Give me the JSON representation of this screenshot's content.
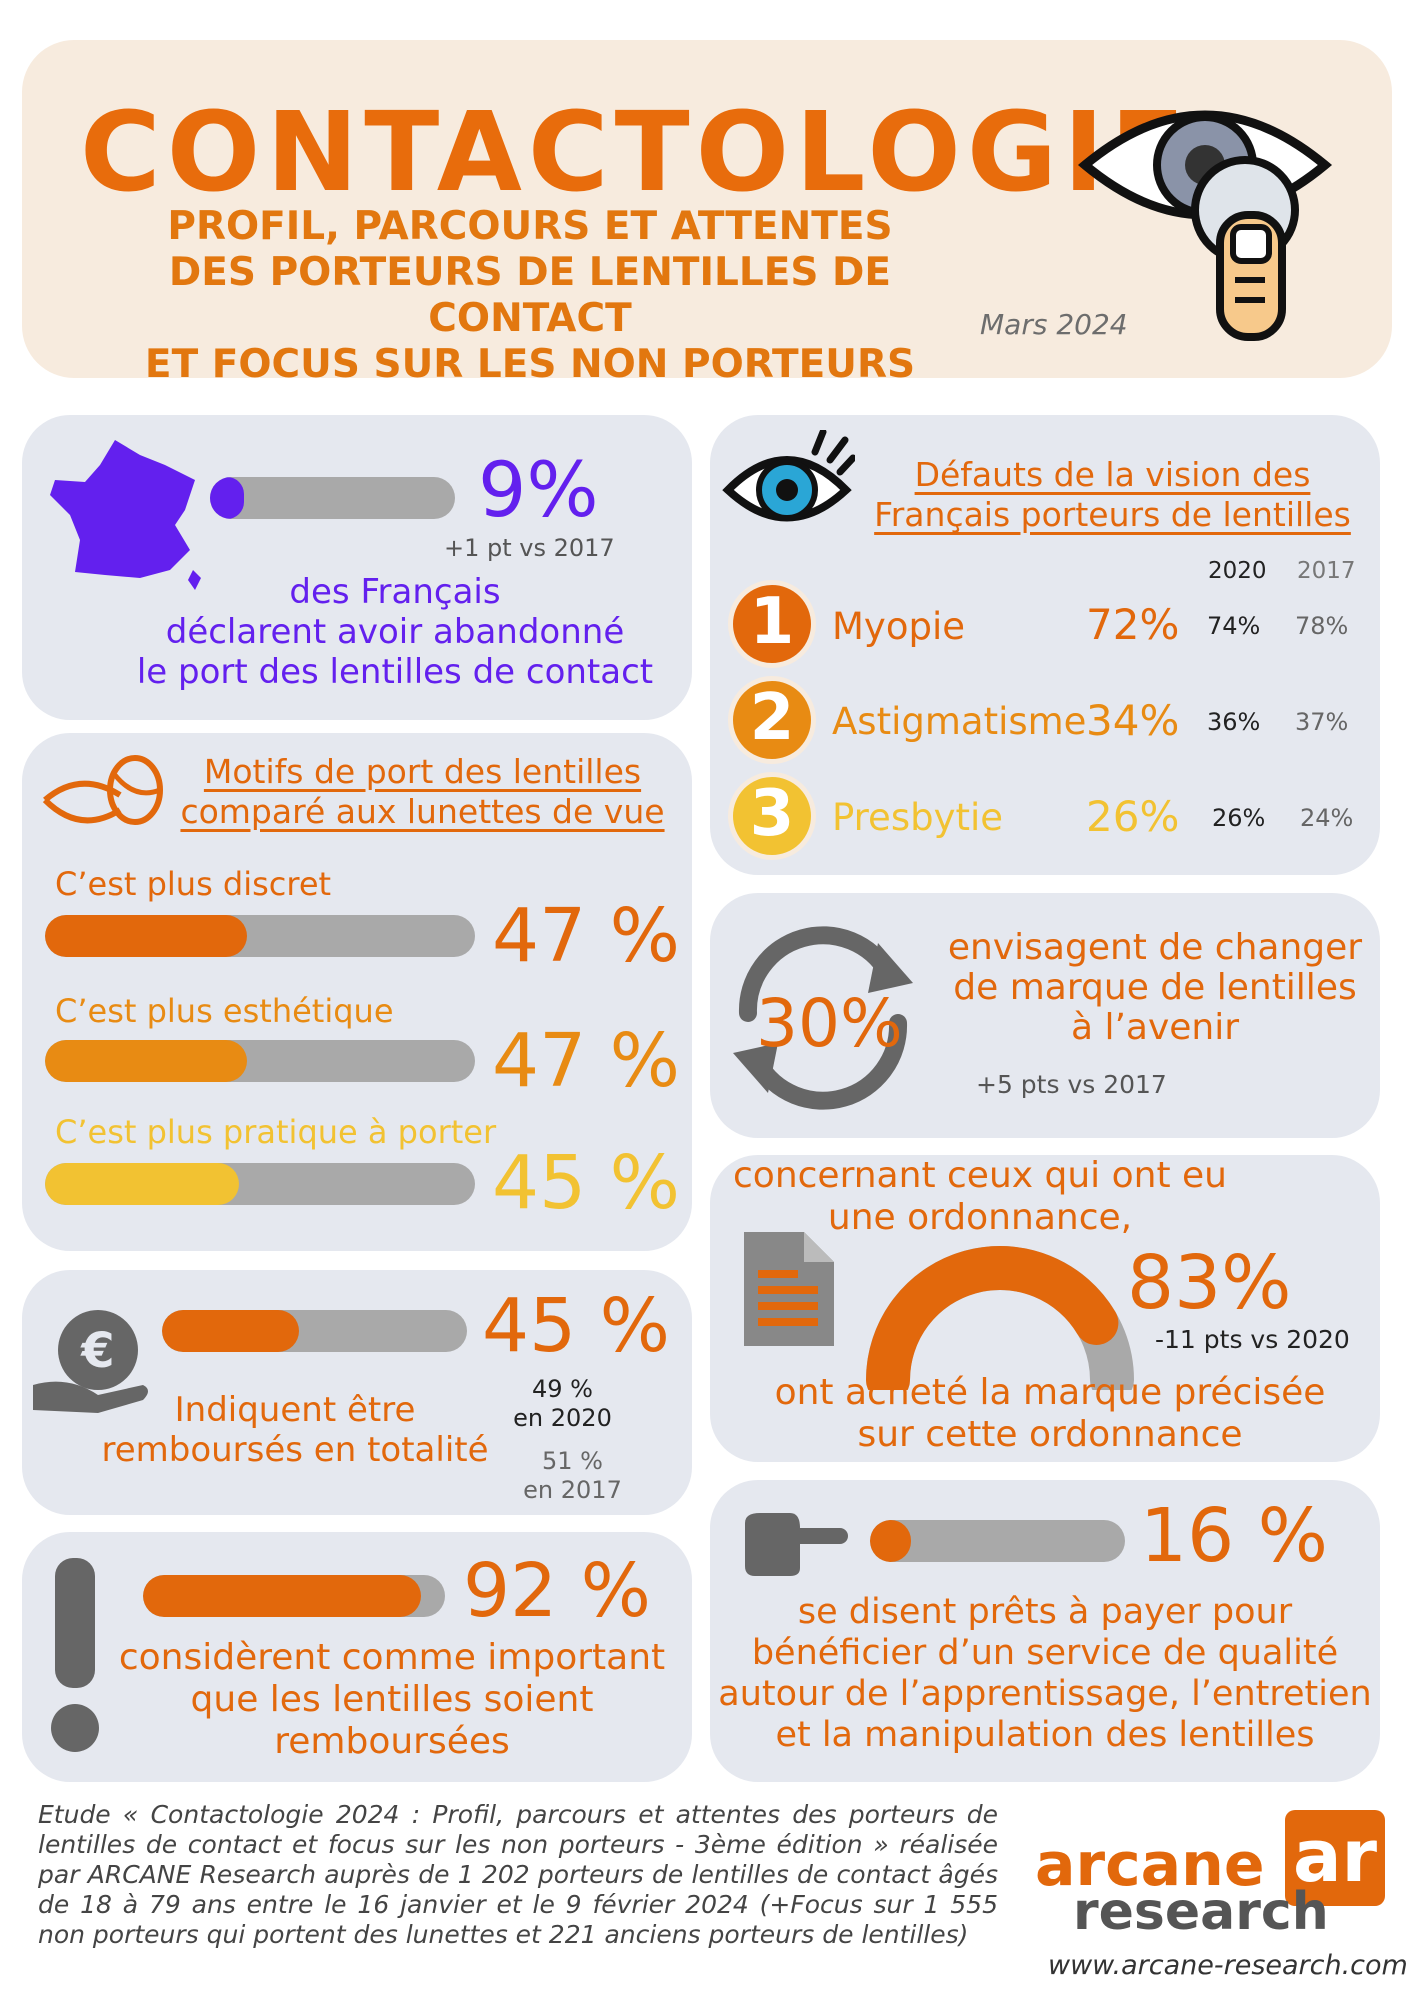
{
  "header": {
    "title": "CONTACTOLOGIE",
    "subtitle": [
      "PROFIL, PARCOURS ET ATTENTES",
      "DES PORTEURS DE LENTILLES DE CONTACT",
      "ET FOCUS SUR LES NON PORTEURS"
    ],
    "date": "Mars 2024"
  },
  "colors": {
    "orange": "#e2680c",
    "mid_orange": "#e88b13",
    "yellow": "#f2c232",
    "purple": "#6320ee",
    "grey_bar": "#a9a9a9",
    "card_bg": "#e5e8ef"
  },
  "abandon": {
    "value": "9%",
    "value_fraction": 0.09,
    "delta": "+1 pt vs 2017",
    "text": [
      "des Français",
      "déclarent avoir abandonné",
      "le port des lentilles de contact"
    ],
    "icon": "france-map-icon"
  },
  "vision": {
    "title": [
      "Défauts de la vision des",
      "Français porteurs de lentilles"
    ],
    "col_2020": "2020",
    "col_2017": "2017",
    "rows": [
      {
        "rank": "1",
        "label": "Myopie",
        "value": "72%",
        "v2020": "74%",
        "v2017": "78%"
      },
      {
        "rank": "2",
        "label": "Astigmatisme",
        "value": "34%",
        "v2020": "36%",
        "v2017": "37%"
      },
      {
        "rank": "3",
        "label": "Presbytie",
        "value": "26%",
        "v2020": "26%",
        "v2017": "24%"
      }
    ],
    "icon": "eye-icon"
  },
  "motifs": {
    "title": [
      "Motifs de port des lentilles",
      "comparé aux lunettes de vue"
    ],
    "items": [
      {
        "label": "C’est plus discret",
        "value": "47 %",
        "fraction": 0.47
      },
      {
        "label": "C’est plus esthétique",
        "value": "47 %",
        "fraction": 0.47
      },
      {
        "label": "C’est plus pratique à porter",
        "value": "45 %",
        "fraction": 0.45
      }
    ],
    "icon": "contact-lens-icon"
  },
  "changer": {
    "value": "30%",
    "text": [
      "envisagent de changer",
      "de marque de lentilles",
      "à l’avenir"
    ],
    "delta": "+5 pts vs 2017",
    "icon": "refresh-arrows-icon"
  },
  "ordonnance": {
    "intro": [
      "concernant ceux qui ont eu",
      "une ordonnance,"
    ],
    "value": "83%",
    "fraction": 0.83,
    "delta": "-11 pts vs 2020",
    "text": [
      "ont acheté la marque précisée",
      "sur cette ordonnance"
    ],
    "icon": "document-icon"
  },
  "rembourse": {
    "value": "45 %",
    "fraction": 0.45,
    "text": [
      "Indiquent être",
      "remboursés en totalité"
    ],
    "y2020_value": "49 %",
    "y2020_label": "en 2020",
    "y2017_value": "51 %",
    "y2017_label": "en 2017",
    "icon": "euro-hand-icon"
  },
  "payer": {
    "value": "16 %",
    "fraction": 0.16,
    "text": [
      "se disent prêts à payer pour",
      "bénéficier d’un service de qualité",
      "autour de l’apprentissage, l’entretien",
      "et la manipulation des lentilles"
    ],
    "icon": "pointing-hand-icon"
  },
  "important": {
    "value": "92 %",
    "fraction": 0.92,
    "text": [
      "considèrent comme important",
      "que les lentilles soient",
      "remboursées"
    ],
    "icon": "exclamation-icon"
  },
  "footer": {
    "note": "Etude « Contactologie 2024 : Profil, parcours et attentes des porteurs de lentilles de contact et focus sur les non porteurs - 3ème édition » réalisée par ARCANE Research auprès de 1 202 porteurs de lentilles de contact âgés de 18 à 79 ans entre le 16 janvier et le 9 février 2024 (+Focus sur 1 555 non porteurs qui portent des lunettes et 221 anciens porteurs de lentilles)",
    "logo_word1": "arcane",
    "logo_word2": "research",
    "logo_mark": "ar",
    "url": "www.arcane-research.com"
  }
}
